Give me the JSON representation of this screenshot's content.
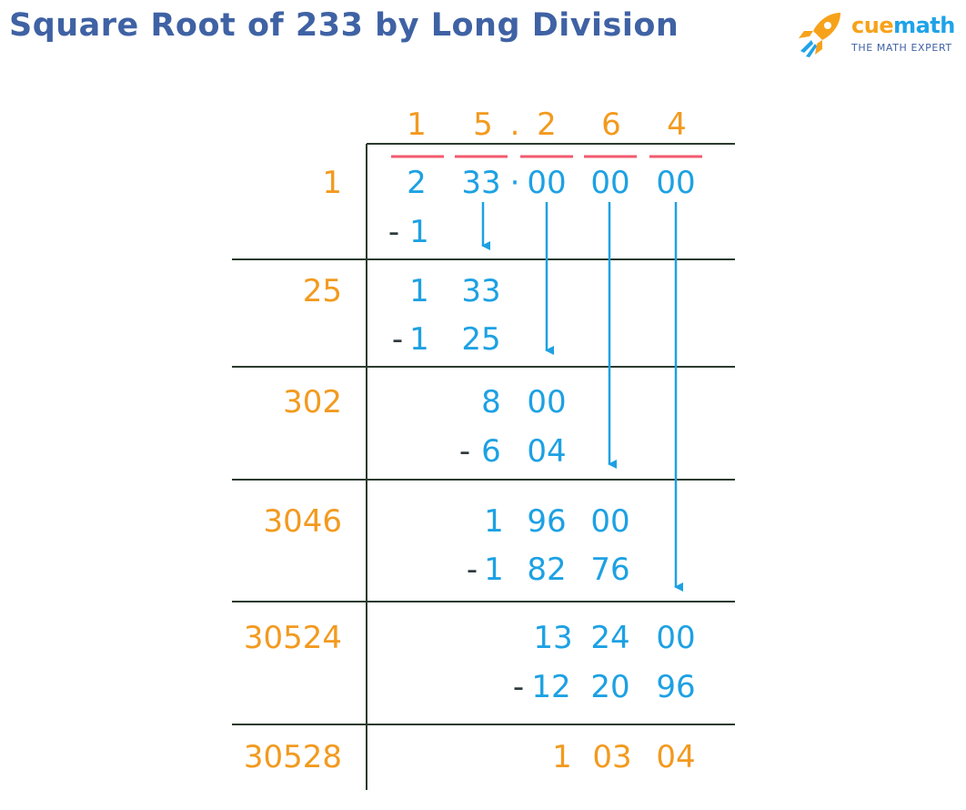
{
  "title": "Square Root of 233 by Long Division",
  "logo": {
    "name_part1": "cue",
    "name_part2": "math",
    "tagline": "THE MATH EXPERT"
  },
  "colors": {
    "title": "#3f62a4",
    "quotient": "#f29a1f",
    "dividend": "#1da1e3",
    "minus": "#2f3a3f",
    "pair_bar": "#f25a6e",
    "rules": "#2a3a2e"
  },
  "quotient_digits": [
    "1",
    "5",
    ".",
    "2",
    "6",
    "4"
  ],
  "dividend": {
    "g1": "2",
    "g2": "33",
    "dot": "·",
    "g3": "00",
    "g4": "00",
    "g5": "00"
  },
  "minus_sign": "-",
  "steps": [
    {
      "divisor": "1",
      "subtracted": [
        "1"
      ]
    },
    {
      "divisor": "25",
      "remainder": [
        "1",
        "33"
      ],
      "subtracted": [
        "1",
        "25"
      ]
    },
    {
      "divisor": "302",
      "remainder": [
        "8",
        "00"
      ],
      "subtracted": [
        "6",
        "04"
      ]
    },
    {
      "divisor": "3046",
      "remainder": [
        "1",
        "96",
        "00"
      ],
      "subtracted": [
        "1",
        "82",
        "76"
      ]
    },
    {
      "divisor": "30524",
      "remainder": [
        "13",
        "24",
        "00"
      ],
      "subtracted": [
        "12",
        "20",
        "96"
      ]
    },
    {
      "divisor": "30528",
      "remainder": [
        "1",
        "03",
        "04"
      ]
    }
  ]
}
